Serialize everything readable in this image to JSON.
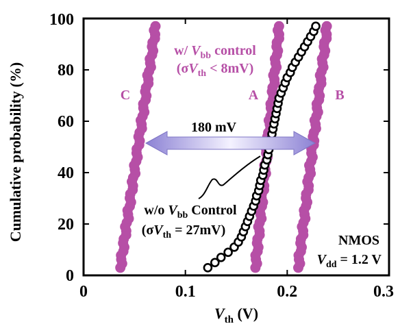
{
  "chart_data": {
    "type": "scatter",
    "xlabel": "Vth (V)",
    "ylabel": "Cumulative probability (%)",
    "xlim": [
      0,
      0.3
    ],
    "ylim": [
      0,
      100
    ],
    "xticks": [
      "0",
      "0.1",
      "0.2",
      "0.3"
    ],
    "yticks": [
      "0",
      "20",
      "40",
      "60",
      "80",
      "100"
    ],
    "grid": false,
    "colors": {
      "wbb": "#b64fa6",
      "wobb": "#000000",
      "arrow_fill": "#c9c4ef",
      "arrow_edge": "#7e74c4"
    },
    "series": [
      {
        "label": "C",
        "style": "filled",
        "color": "#b64fa6",
        "x_at_0": 0.035,
        "x_at_100": 0.072,
        "y_min": 3,
        "y_max": 97,
        "count": 60
      },
      {
        "label": "A",
        "style": "filled",
        "color": "#b64fa6",
        "x_at_0": 0.168,
        "x_at_100": 0.193,
        "y_min": 3,
        "y_max": 97,
        "count": 60
      },
      {
        "label": "B",
        "style": "filled",
        "color": "#b64fa6",
        "x_at_0": 0.21,
        "x_at_100": 0.24,
        "y_min": 3,
        "y_max": 97,
        "count": 60
      },
      {
        "style": "open",
        "color": "#000000",
        "points": [
          [
            0.122,
            3
          ],
          [
            0.129,
            5
          ],
          [
            0.135,
            7
          ],
          [
            0.142,
            9
          ],
          [
            0.148,
            11
          ],
          [
            0.152,
            13
          ],
          [
            0.155,
            15
          ],
          [
            0.157,
            17
          ],
          [
            0.159,
            19
          ],
          [
            0.161,
            21
          ],
          [
            0.163,
            23
          ],
          [
            0.165,
            25
          ],
          [
            0.167,
            27
          ],
          [
            0.169,
            29
          ],
          [
            0.17,
            31
          ],
          [
            0.172,
            33
          ],
          [
            0.173,
            35
          ],
          [
            0.174,
            37
          ],
          [
            0.176,
            39
          ],
          [
            0.177,
            41
          ],
          [
            0.178,
            43
          ],
          [
            0.18,
            45
          ],
          [
            0.181,
            47
          ],
          [
            0.182,
            49
          ],
          [
            0.183,
            51
          ],
          [
            0.184,
            53
          ],
          [
            0.185,
            55
          ],
          [
            0.186,
            57
          ],
          [
            0.187,
            59
          ],
          [
            0.188,
            61
          ],
          [
            0.189,
            63
          ],
          [
            0.19,
            65
          ],
          [
            0.191,
            67
          ],
          [
            0.192,
            69
          ],
          [
            0.194,
            71
          ],
          [
            0.196,
            73
          ],
          [
            0.198,
            75
          ],
          [
            0.2,
            77
          ],
          [
            0.203,
            79
          ],
          [
            0.205,
            81
          ],
          [
            0.208,
            83
          ],
          [
            0.211,
            85
          ],
          [
            0.214,
            87
          ],
          [
            0.217,
            89
          ],
          [
            0.22,
            91
          ],
          [
            0.223,
            93
          ],
          [
            0.226,
            95
          ],
          [
            0.228,
            97
          ]
        ]
      }
    ],
    "annotations": {
      "label_c": "C",
      "label_a": "A",
      "label_b": "B",
      "wbb_line1_pre": "w/ ",
      "wbb_line1_v": "V",
      "wbb_line1_sub": "bb",
      "wbb_line1_post": " control",
      "wbb_line2_pre": "(σ",
      "wbb_line2_v": "V",
      "wbb_line2_sub": "th",
      "wbb_line2_post": " < 8mV)",
      "arrow_label": "180 mV",
      "wobb_line1_pre": "w/o ",
      "wobb_line1_v": "V",
      "wobb_line1_sub": "bb",
      "wobb_line1_post": " Control",
      "wobb_line2_pre": "(σ",
      "wobb_line2_v": "V",
      "wobb_line2_sub": "th",
      "wobb_line2_post": " = 27mV)",
      "nmos": "NMOS",
      "vdd_v": "V",
      "vdd_sub": "dd",
      "vdd_post": " = 1.2 V"
    },
    "axis_title_x_v": "V",
    "axis_title_x_sub": "th",
    "axis_title_x_unit": " (V)",
    "axis_title_y": "Cumulative probability (%)"
  }
}
